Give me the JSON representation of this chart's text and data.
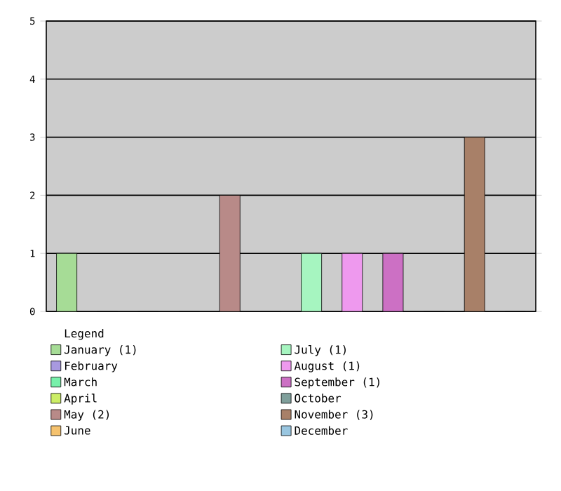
{
  "chart_data": {
    "type": "bar",
    "legend_title": "Legend",
    "categories": [
      null
    ],
    "series": [
      {
        "name": "January (1)",
        "color": "#a6dc96",
        "values": [
          1
        ]
      },
      {
        "name": "February",
        "color": "#a899e0",
        "values": [
          0
        ]
      },
      {
        "name": "March",
        "color": "#77f0aa",
        "values": [
          0
        ]
      },
      {
        "name": "April",
        "color": "#ccee66",
        "values": [
          0
        ]
      },
      {
        "name": "May (2)",
        "color": "#b88a88",
        "values": [
          2
        ]
      },
      {
        "name": "June",
        "color": "#f5c26e",
        "values": [
          0
        ]
      },
      {
        "name": "July (1)",
        "color": "#a6f5c0",
        "values": [
          1
        ]
      },
      {
        "name": "August (1)",
        "color": "#ee99ee",
        "values": [
          1
        ]
      },
      {
        "name": "September (1)",
        "color": "#cc70c4",
        "values": [
          1
        ]
      },
      {
        "name": "October",
        "color": "#7f9f9b",
        "values": [
          0
        ]
      },
      {
        "name": "November (3)",
        "color": "#a88068",
        "values": [
          3
        ]
      },
      {
        "name": "December",
        "color": "#99c6e0",
        "values": [
          0
        ]
      }
    ],
    "ylim": [
      0,
      5
    ],
    "yticks": [
      0,
      1,
      2,
      3,
      4,
      5
    ],
    "grid": "y",
    "legend": "bottom",
    "tick_labels": "y"
  }
}
